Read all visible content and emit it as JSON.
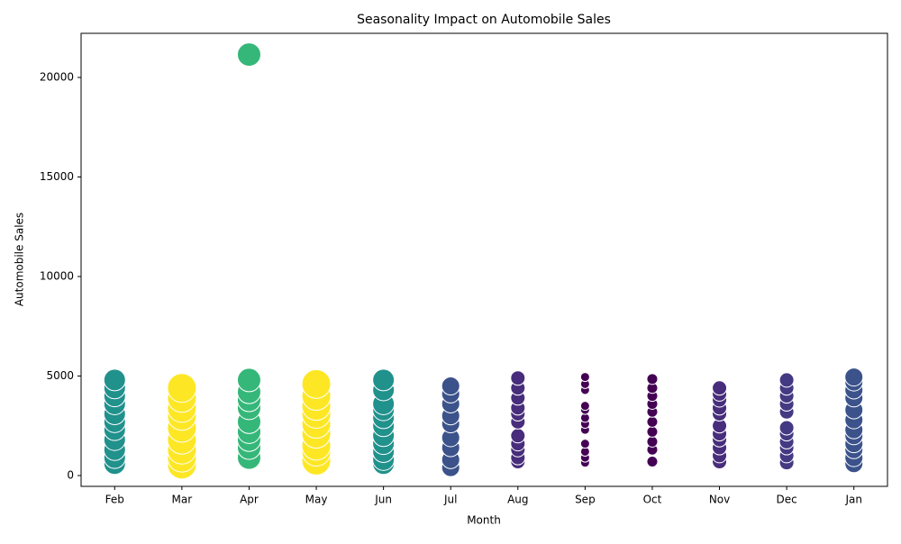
{
  "chart_data": {
    "type": "bubble",
    "title": "Seasonality Impact on Automobile Sales",
    "x_label": "Month",
    "y_label": "Automobile Sales",
    "categories": [
      "Feb",
      "Mar",
      "Apr",
      "May",
      "Jun",
      "Jul",
      "Aug",
      "Sep",
      "Oct",
      "Nov",
      "Dec",
      "Jan"
    ],
    "colors": [
      "#21918c",
      "#fde725",
      "#35b779",
      "#fde725",
      "#21918c",
      "#3b528b",
      "#472d7b",
      "#440154",
      "#440154",
      "#472d7b",
      "#443983",
      "#3b528b"
    ],
    "sizes": [
      12,
      16,
      13,
      16,
      12,
      10,
      8,
      5,
      6,
      8,
      8,
      10
    ],
    "values": [
      [
        600,
        900,
        1300,
        1800,
        2300,
        2700,
        3100,
        3600,
        4000,
        4400,
        4800
      ],
      [
        550,
        900,
        1300,
        1800,
        2400,
        3000,
        3400,
        3900,
        4400
      ],
      [
        900,
        1400,
        1800,
        2200,
        2700,
        3400,
        3800,
        4200,
        4800,
        21150
      ],
      [
        750,
        1200,
        1500,
        2100,
        2600,
        3100,
        3500,
        4000,
        4600
      ],
      [
        600,
        800,
        1200,
        1600,
        2000,
        2500,
        2900,
        3300,
        3600,
        4300,
        4800
      ],
      [
        400,
        800,
        1400,
        1900,
        2600,
        3000,
        3600,
        4100,
        4500
      ],
      [
        700,
        900,
        1300,
        1600,
        2000,
        2700,
        3100,
        3400,
        3900,
        4400,
        4900
      ],
      [
        650,
        900,
        1200,
        1600,
        2300,
        2600,
        2900,
        3300,
        3500,
        4300,
        4600,
        4950
      ],
      [
        700,
        1300,
        1700,
        2200,
        2700,
        3200,
        3600,
        4000,
        4400,
        4850
      ],
      [
        700,
        1000,
        1400,
        1800,
        2100,
        2500,
        3100,
        3400,
        3800,
        4100,
        4400
      ],
      [
        650,
        1000,
        1400,
        1700,
        2100,
        2400,
        3200,
        3600,
        4000,
        4400,
        4800
      ],
      [
        600,
        900,
        1300,
        1600,
        2000,
        2300,
        2800,
        3300,
        3900,
        4300,
        4700,
        4950
      ]
    ],
    "ylim": [
      -543,
      22217
    ],
    "yticks": [
      0,
      5000,
      10000,
      15000,
      20000
    ],
    "grid": false
  }
}
